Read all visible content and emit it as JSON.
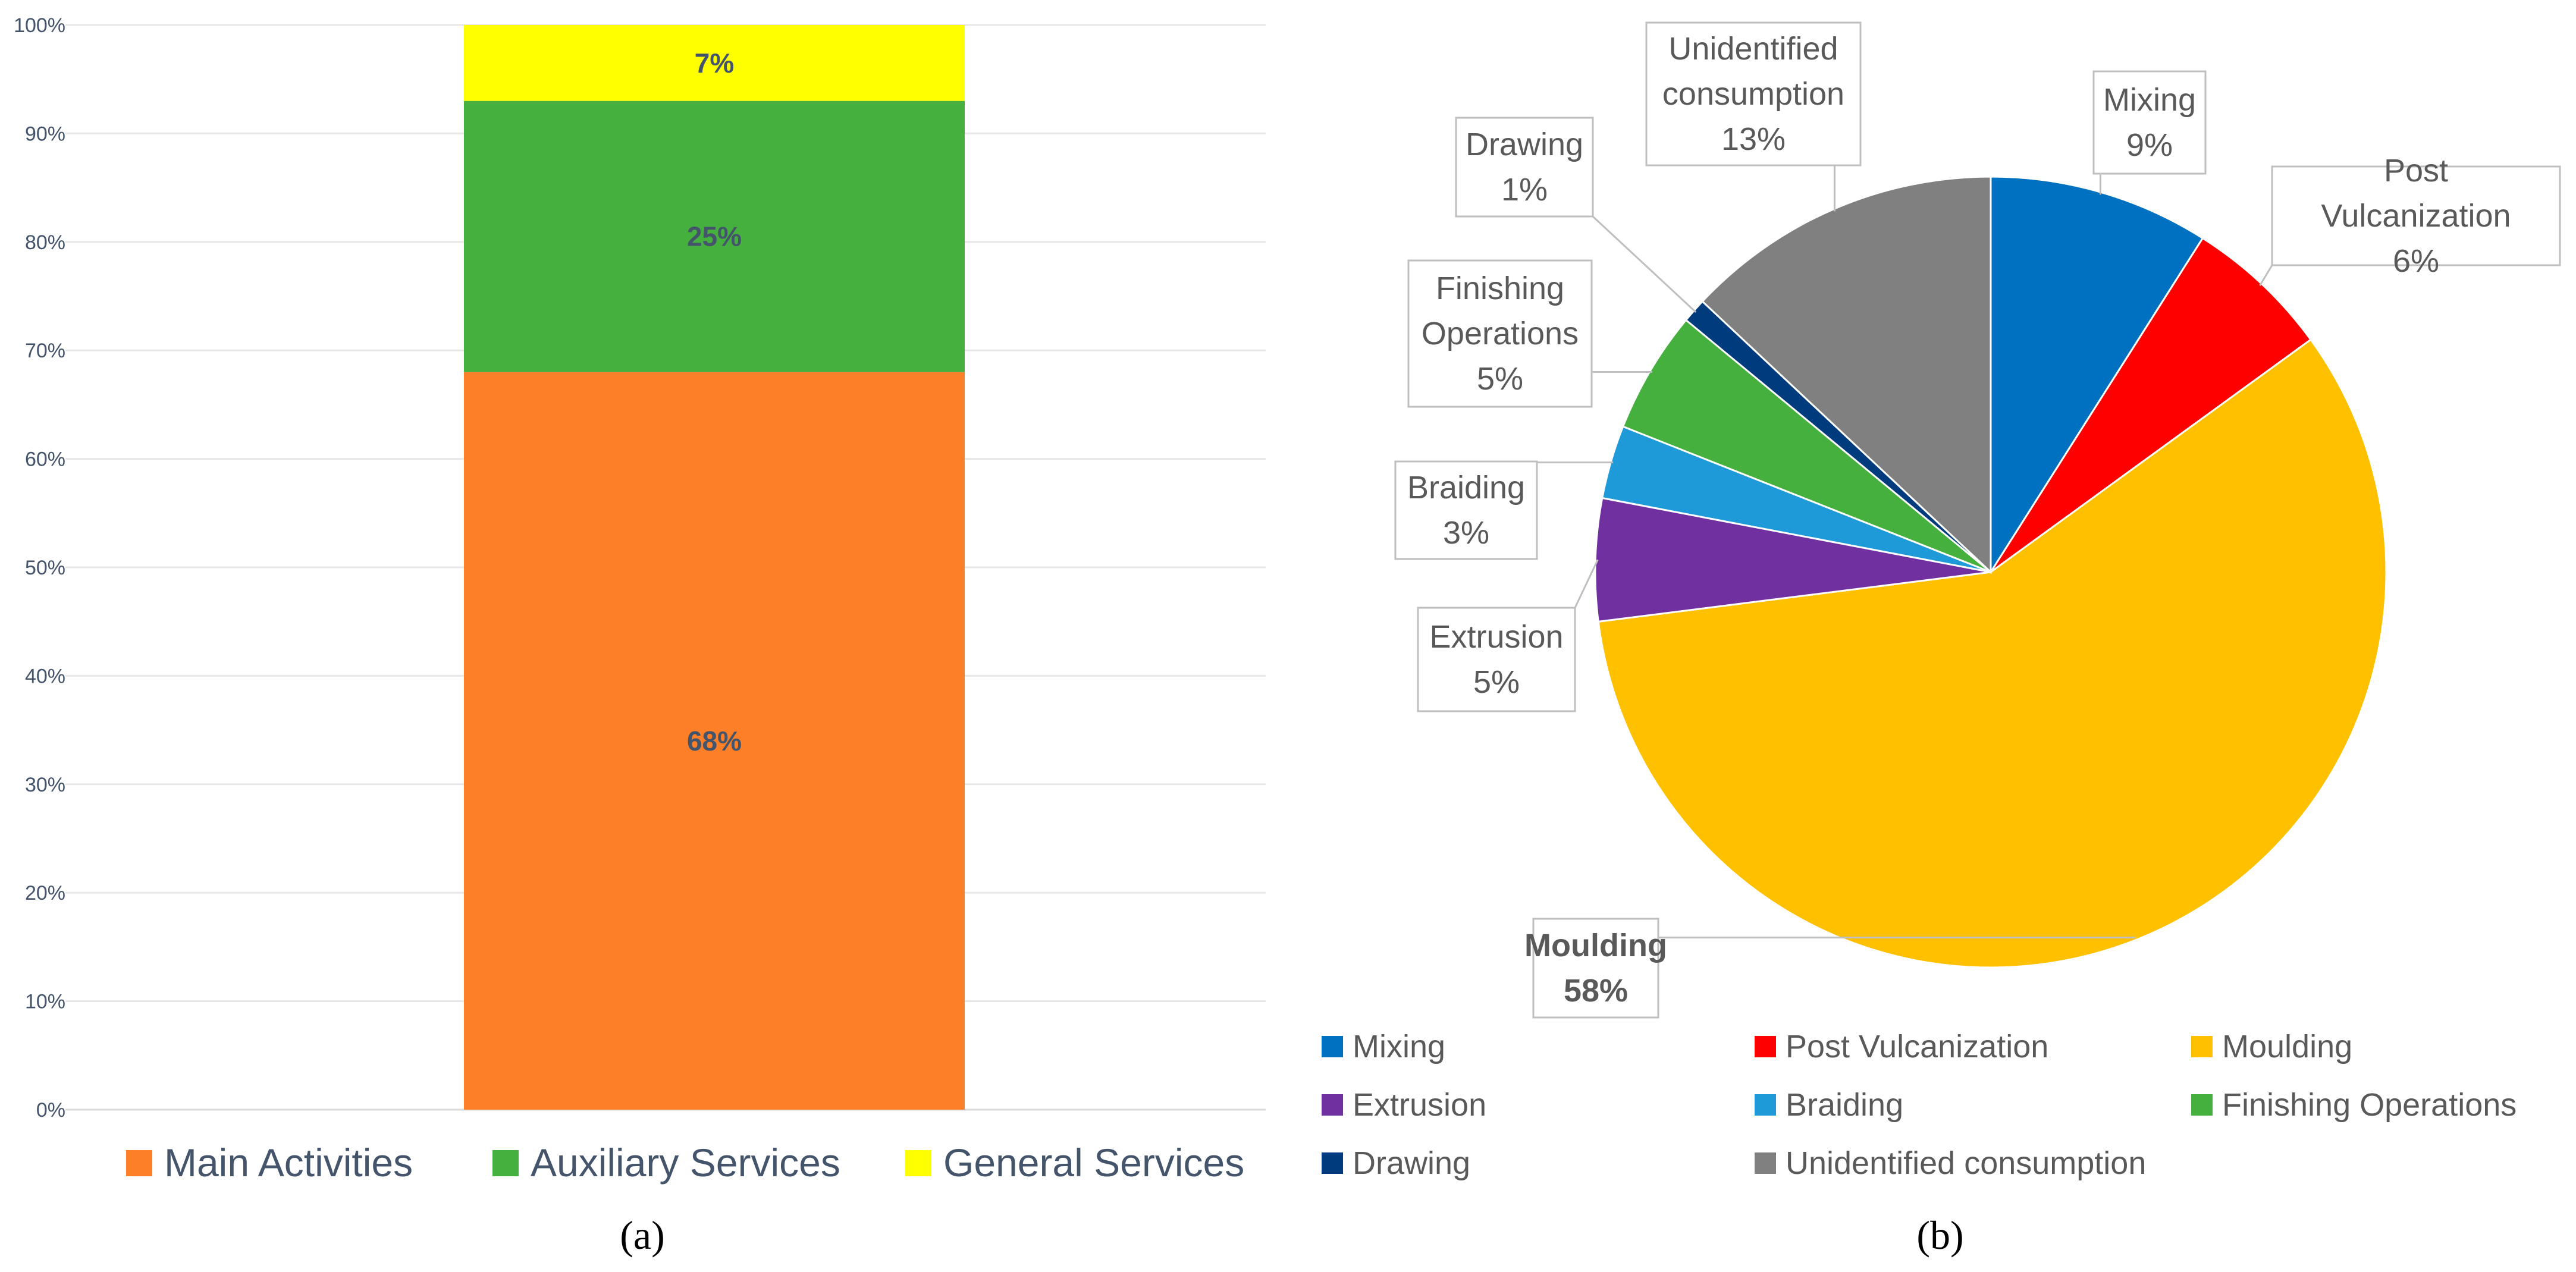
{
  "chart_data": [
    {
      "type": "bar",
      "stacked": true,
      "panel_label": "(a)",
      "categories": [
        ""
      ],
      "series": [
        {
          "name": "Main Activities",
          "values": [
            68
          ],
          "label": "68%",
          "color": "#fd7f28"
        },
        {
          "name": "Auxiliary Services",
          "values": [
            25
          ],
          "label": "25%",
          "color": "#46b03f"
        },
        {
          "name": "General Services",
          "values": [
            7
          ],
          "label": "7%",
          "color": "#ffff00"
        }
      ],
      "yticks": [
        "0%",
        "10%",
        "20%",
        "30%",
        "40%",
        "50%",
        "60%",
        "70%",
        "80%",
        "90%",
        "100%"
      ],
      "ylim": [
        0,
        100
      ],
      "grid": true,
      "legend": "bottom"
    },
    {
      "type": "pie",
      "panel_label": "(b)",
      "slices": [
        {
          "name": "Mixing",
          "value": 9,
          "label_name": "Mixing",
          "label_pct": "9%",
          "color": "#0070c0"
        },
        {
          "name": "Post Vulcanization",
          "value": 6,
          "label_name": "Post Vulcanization",
          "label_pct": "6%",
          "color": "#ff0000"
        },
        {
          "name": "Moulding",
          "value": 58,
          "label_name": "Moulding",
          "label_pct": "58%",
          "color": "#ffc000"
        },
        {
          "name": "Extrusion",
          "value": 5,
          "label_name": "Extrusion",
          "label_pct": "5%",
          "color": "#7030a0"
        },
        {
          "name": "Braiding",
          "value": 3,
          "label_name": "Braiding",
          "label_pct": "3%",
          "color": "#1f9ad8"
        },
        {
          "name": "Finishing Operations",
          "value": 5,
          "label_name": "Finishing Operations",
          "label_pct": "5%",
          "color": "#46b03f"
        },
        {
          "name": "Drawing",
          "value": 1,
          "label_name": "Drawing",
          "label_pct": "1%",
          "color": "#003c7d"
        },
        {
          "name": "Unidentified consumption",
          "value": 13,
          "label_name": "Unidentified consumption",
          "label_pct": "13%",
          "color": "#808080"
        }
      ],
      "legend": "bottom"
    }
  ]
}
